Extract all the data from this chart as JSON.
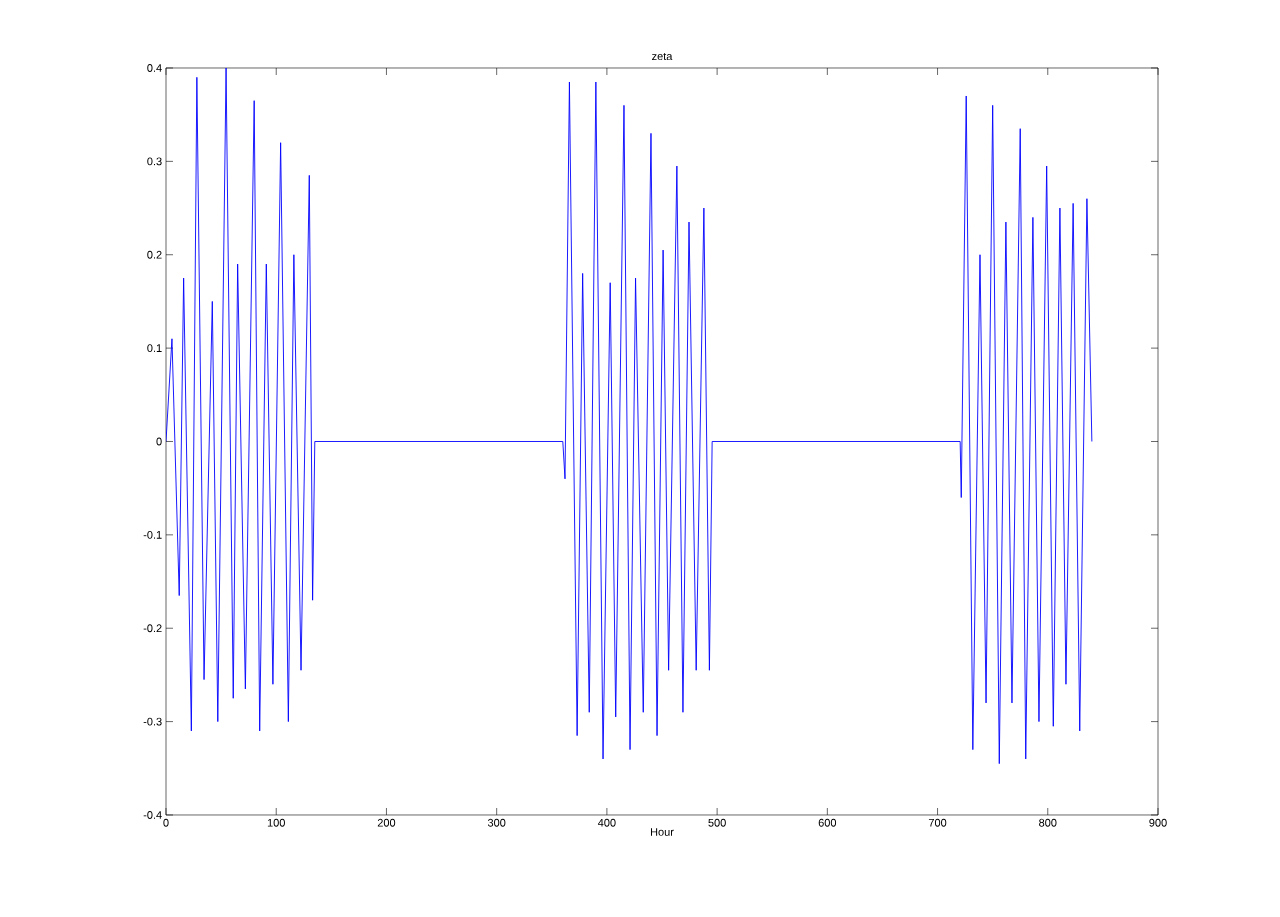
{
  "chart_data": {
    "type": "line",
    "title": "zeta",
    "xlabel": "Hour",
    "x": [
      0,
      5.4,
      12,
      16,
      23,
      28,
      34.5,
      42,
      47,
      54.5,
      61,
      65,
      72,
      80,
      85,
      91,
      97,
      104,
      111,
      116,
      122.5,
      130,
      133,
      135,
      360,
      362,
      366,
      373,
      378,
      384,
      390,
      396.5,
      403,
      408,
      415.5,
      421,
      426,
      433,
      440,
      445.5,
      451,
      456,
      463.5,
      469,
      474.5,
      481,
      488,
      493,
      495.5,
      720.5,
      721.5,
      726,
      732,
      738.5,
      744,
      750,
      756,
      762,
      767.5,
      775,
      780,
      786.5,
      792,
      799,
      805,
      811,
      816.5,
      823,
      829,
      835.5,
      840
    ],
    "series": [
      {
        "color": "#0000ff",
        "values": [
          0,
          0.11,
          -0.165,
          0.175,
          -0.31,
          0.39,
          -0.255,
          0.15,
          -0.3,
          0.4,
          -0.275,
          0.19,
          -0.265,
          0.365,
          -0.31,
          0.19,
          -0.26,
          0.32,
          -0.3,
          0.2,
          -0.245,
          0.285,
          -0.17,
          0,
          0,
          -0.04,
          0.385,
          -0.315,
          0.18,
          -0.29,
          0.385,
          -0.34,
          0.17,
          -0.295,
          0.36,
          -0.33,
          0.175,
          -0.29,
          0.33,
          -0.315,
          0.205,
          -0.245,
          0.295,
          -0.29,
          0.235,
          -0.245,
          0.25,
          -0.245,
          0,
          0,
          -0.06,
          0.37,
          -0.33,
          0.2,
          -0.28,
          0.36,
          -0.345,
          0.235,
          -0.28,
          0.335,
          -0.34,
          0.24,
          -0.3,
          0.295,
          -0.305,
          0.25,
          -0.26,
          0.255,
          -0.31,
          0.26,
          0
        ]
      }
    ],
    "xlim": [
      0,
      900
    ],
    "ylim": [
      -0.4,
      0.4
    ],
    "xticks": [
      0,
      100,
      200,
      300,
      400,
      500,
      600,
      700,
      800,
      900
    ],
    "yticks": [
      -0.4,
      -0.3,
      -0.2,
      -0.1,
      0,
      0.1,
      0.2,
      0.3,
      0.4
    ],
    "marker": "none",
    "line_style": "solid"
  }
}
